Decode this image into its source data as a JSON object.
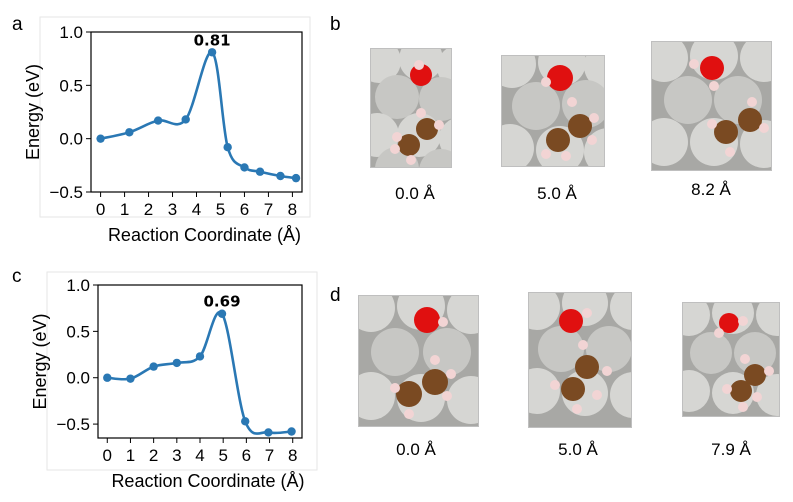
{
  "panels": {
    "a": "a",
    "b": "b",
    "c": "c",
    "d": "d"
  },
  "chart_data": [
    {
      "type": "line",
      "panel": "a",
      "xlabel": "Reaction Coordinate (Å)",
      "ylabel": "Energy (eV)",
      "xlim": [
        -0.4,
        8.4
      ],
      "ylim": [
        -0.5,
        1.0
      ],
      "xticks": [
        0,
        1,
        2,
        3,
        4,
        5,
        6,
        7,
        8
      ],
      "yticks": [
        -0.5,
        0.0,
        0.5,
        1.0
      ],
      "ytick_labels": [
        "−0.5",
        "0.0",
        "0.5",
        "1.0"
      ],
      "x": [
        0.0,
        1.2,
        2.4,
        3.55,
        4.65,
        5.3,
        6.0,
        6.65,
        7.5,
        8.15
      ],
      "y": [
        0.0,
        0.06,
        0.17,
        0.18,
        0.81,
        -0.08,
        -0.27,
        -0.31,
        -0.35,
        -0.37
      ],
      "annotation": "0.81",
      "annotation_x": 4.65,
      "annotation_y": 0.81,
      "color": "#2a78b4",
      "grid": false
    },
    {
      "type": "line",
      "panel": "c",
      "xlabel": "Reaction Coordinate (Å)",
      "ylabel": "Energy (eV)",
      "xlim": [
        -0.4,
        8.4
      ],
      "ylim": [
        -0.65,
        1.0
      ],
      "xticks": [
        0,
        1,
        2,
        3,
        4,
        5,
        6,
        7,
        8
      ],
      "yticks": [
        -0.5,
        0.0,
        0.5,
        1.0
      ],
      "ytick_labels": [
        "−0.5",
        "0.0",
        "0.5",
        "1.0"
      ],
      "x": [
        0.0,
        1.0,
        2.0,
        3.0,
        4.0,
        4.95,
        5.95,
        6.95,
        7.95
      ],
      "y": [
        0.0,
        -0.01,
        0.12,
        0.16,
        0.23,
        0.69,
        -0.47,
        -0.59,
        -0.58
      ],
      "annotation": "0.69",
      "annotation_x": 4.95,
      "annotation_y": 0.69,
      "color": "#2a78b4",
      "grid": false
    }
  ],
  "structures": {
    "b": [
      "0.0 Å",
      "5.0 Å",
      "8.2 Å"
    ],
    "d": [
      "0.0 Å",
      "5.0 Å",
      "7.9 Å"
    ]
  },
  "colors": {
    "line": "#2a78b4",
    "surface_atom": "#c9c9c6",
    "oxygen": "#e01010",
    "carbon": "#7a4a22",
    "hydrogen": "#f2d4d4"
  }
}
